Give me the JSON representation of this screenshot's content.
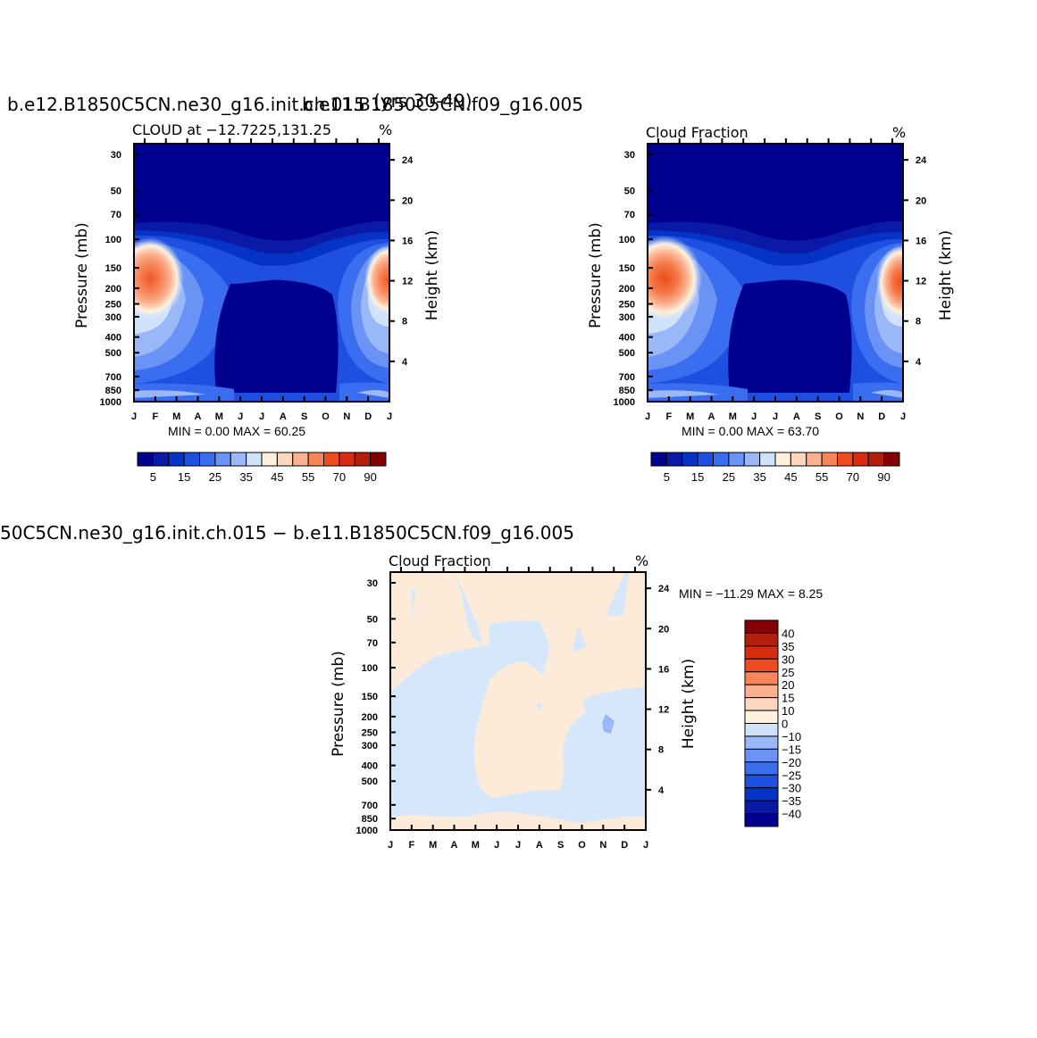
{
  "chart_data": [
    {
      "type": "heatmap",
      "title": "b.e12.B1850C5CN.ne30_g16.init.ch.015",
      "overlap_title": "b.e11.B1850C5CN.f09_g16.005",
      "overlap_title_behind": "(yrs 30-49)",
      "subtitle_left": "CLOUD at −12.7225,131.25",
      "subtitle_right": "%",
      "xlabel": "",
      "ylabel": "Pressure (mb)",
      "ylabel_right": "Height (km)",
      "x_ticks": [
        "J",
        "F",
        "M",
        "A",
        "M",
        "J",
        "J",
        "A",
        "S",
        "O",
        "N",
        "D",
        "J"
      ],
      "y_ticks": [
        30,
        50,
        70,
        100,
        150,
        200,
        250,
        300,
        400,
        500,
        700,
        850,
        1000
      ],
      "y_ticks_right": [
        24,
        20,
        16,
        12,
        8,
        4
      ],
      "minmax_text": "MIN =     0.00  MAX =    60.25",
      "min": 0.0,
      "max": 60.25,
      "colorbar_labels": [
        "5",
        "15",
        "25",
        "35",
        "45",
        "55",
        "70",
        "90"
      ],
      "colorbar_colors": [
        "#00008f",
        "#0a1aa6",
        "#0533c5",
        "#1f4fe0",
        "#3a6df0",
        "#6b93f5",
        "#9ab8f8",
        "#cfe2fa",
        "#fff1de",
        "#fcd6bd",
        "#fbb08f",
        "#f7855a",
        "#ef4b1f",
        "#d82c10",
        "#b21f0b",
        "#840005"
      ]
    },
    {
      "type": "heatmap",
      "title": "",
      "subtitle_left": "Cloud Fraction",
      "subtitle_right": "%",
      "xlabel": "",
      "ylabel": "Pressure (mb)",
      "ylabel_right": "Height (km)",
      "x_ticks": [
        "J",
        "F",
        "M",
        "A",
        "M",
        "J",
        "J",
        "A",
        "S",
        "O",
        "N",
        "D",
        "J"
      ],
      "y_ticks": [
        30,
        50,
        70,
        100,
        150,
        200,
        250,
        300,
        400,
        500,
        700,
        850,
        1000
      ],
      "y_ticks_right": [
        24,
        20,
        16,
        12,
        8,
        4
      ],
      "minmax_text": "MIN =     0.00  MAX =    63.70",
      "min": 0.0,
      "max": 63.7,
      "colorbar_labels": [
        "5",
        "15",
        "25",
        "35",
        "45",
        "55",
        "70",
        "90"
      ]
    },
    {
      "type": "heatmap",
      "title": "50C5CN.ne30_g16.init.ch.015 − b.e11.B1850C5CN.f09_g16.005",
      "subtitle_left": "Cloud Fraction",
      "subtitle_right": "%",
      "xlabel": "",
      "ylabel": "Pressure (mb)",
      "ylabel_right": "Height (km)",
      "x_ticks": [
        "J",
        "F",
        "M",
        "A",
        "M",
        "J",
        "J",
        "A",
        "S",
        "O",
        "N",
        "D",
        "J"
      ],
      "y_ticks": [
        30,
        50,
        70,
        100,
        150,
        200,
        250,
        300,
        400,
        500,
        700,
        850,
        1000
      ],
      "y_ticks_right": [
        24,
        20,
        16,
        12,
        8,
        4
      ],
      "minmax_text": "MIN = −11.29  MAX =     8.25",
      "min": -11.29,
      "max": 8.25,
      "colorbar_labels": [
        "40",
        "35",
        "30",
        "25",
        "20",
        "15",
        "10",
        "0",
        "−10",
        "−15",
        "−20",
        "−25",
        "−30",
        "−35",
        "−40"
      ],
      "colorbar_colors": [
        "#840005",
        "#b21f0b",
        "#d82c10",
        "#ef4b1f",
        "#f7855a",
        "#fbb08f",
        "#fcd6bd",
        "#fff1de",
        "#cfe2fa",
        "#9ab8f8",
        "#6b93f5",
        "#3a6df0",
        "#1f4fe0",
        "#0533c5",
        "#0a1aa6",
        "#00008f"
      ],
      "fill_positive": "#fdebd9",
      "fill_negative": "#d6e7fb",
      "fill_min_blob": "#9ab8f8"
    }
  ]
}
